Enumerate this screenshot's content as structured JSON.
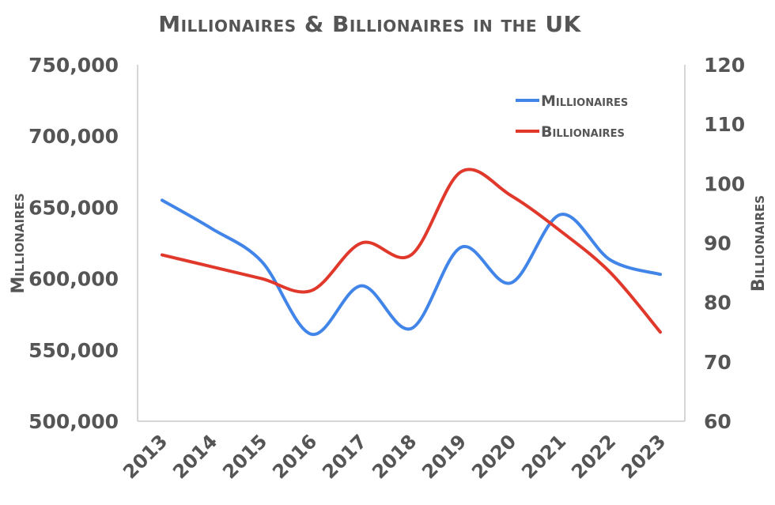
{
  "chart_data": {
    "type": "line",
    "title": "Millionaires & Billionaires in the UK",
    "categories": [
      "2013",
      "2014",
      "2015",
      "2016",
      "2017",
      "2018",
      "2019",
      "2020",
      "2021",
      "2022",
      "2023"
    ],
    "series": [
      {
        "name": "Millionaires",
        "axis": "left",
        "color": "#4285E8",
        "values": [
          655000,
          635000,
          612000,
          561000,
          595000,
          565000,
          622000,
          597000,
          645000,
          613000,
          603000
        ]
      },
      {
        "name": "Billionaires",
        "axis": "right",
        "color": "#E0392B",
        "values": [
          88,
          86,
          84,
          82,
          90,
          88,
          102,
          98,
          92,
          85,
          75
        ]
      }
    ],
    "xlabel": "",
    "ylabel": "Millionaires",
    "y2label": "Billionaires",
    "ylim": [
      500000,
      750000
    ],
    "y2lim": [
      60,
      120
    ],
    "yticks": [
      "500,000",
      "550,000",
      "600,000",
      "650,000",
      "700,000",
      "750,000"
    ],
    "y2ticks": [
      "60",
      "70",
      "80",
      "90",
      "100",
      "110",
      "120"
    ],
    "grid": false,
    "legend_position": "top-right",
    "smooth": true
  },
  "labels": {
    "title": "Millionaires & Billionaires in the UK",
    "y_left": "Millionaires",
    "y_right": "Billionaires",
    "legend_millionaires": "Millionaires",
    "legend_billionaires": "Billionaires"
  }
}
